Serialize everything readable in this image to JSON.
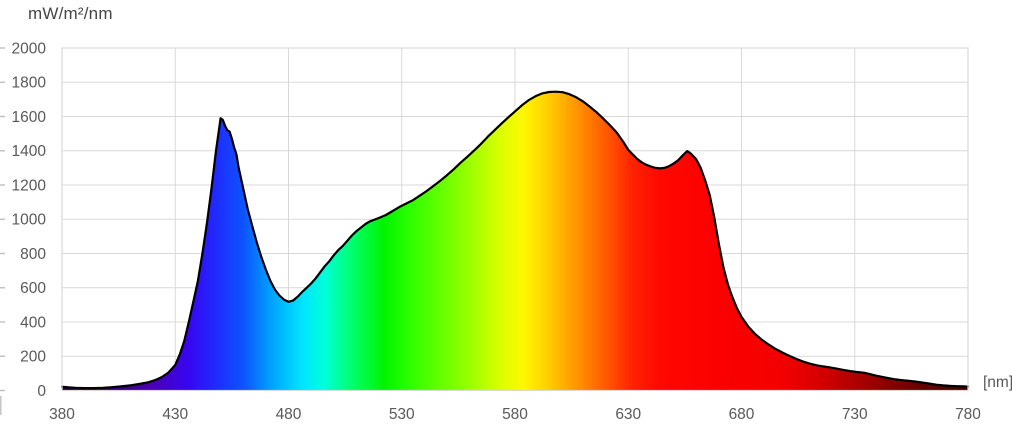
{
  "chart_data": {
    "type": "area",
    "title": "mW/m²/nm",
    "ylabel": "mW/m²/nm",
    "xlabel": "[nm]",
    "xlim": [
      380,
      780
    ],
    "ylim": [
      0,
      2000
    ],
    "x_ticks": [
      380,
      430,
      480,
      530,
      580,
      630,
      680,
      730,
      780
    ],
    "y_ticks": [
      0,
      200,
      400,
      600,
      800,
      1000,
      1200,
      1400,
      1600,
      1800,
      2000
    ],
    "grid": true,
    "grid_color": "#d9d9d9",
    "axis_tick_color": "#bfbfbf",
    "label_color": "#595959",
    "curve_color": "#000000",
    "background_color": "#ffffff",
    "description": "Spectral irradiance of a light source: blue peak ~1590 at 450 nm, valley ~520 at 480 nm, broad maximum ~1745 at 595-600 nm, local dip ~1297 at 644 nm, red peak ~1400 at 656 nm, long dark-red tail to 780 nm",
    "series": [
      {
        "name": "spectral-irradiance",
        "x": [
          380,
          383,
          386,
          390,
          394,
          398,
          402,
          406,
          410,
          414,
          418,
          421,
          424,
          427,
          430,
          432,
          434,
          436,
          438,
          440,
          442,
          444,
          446,
          448,
          450,
          451,
          452,
          453,
          454,
          455,
          456,
          457,
          458,
          460,
          462,
          464,
          466,
          468,
          470,
          472,
          474,
          476,
          478,
          480,
          482,
          484,
          486,
          488,
          490,
          492,
          494,
          496,
          498,
          500,
          502,
          504,
          506,
          508,
          510,
          512,
          514,
          516,
          518,
          520,
          523,
          526,
          529,
          532,
          535,
          538,
          541,
          544,
          547,
          550,
          553,
          556,
          559,
          562,
          565,
          568,
          571,
          574,
          577,
          580,
          583,
          586,
          589,
          592,
          595,
          598,
          601,
          604,
          607,
          610,
          613,
          616,
          619,
          622,
          625,
          628,
          630,
          632,
          634,
          636,
          638,
          640,
          642,
          644,
          646,
          648,
          650,
          652,
          654,
          656,
          657,
          658,
          660,
          662,
          664,
          666,
          668,
          670,
          672,
          674,
          676,
          678,
          680,
          683,
          686,
          689,
          692,
          695,
          698,
          701,
          704,
          707,
          710,
          713,
          716,
          719,
          722,
          725,
          728,
          731,
          734,
          736,
          739,
          742,
          745,
          748,
          751,
          754,
          757,
          760,
          763,
          766,
          769,
          772,
          775,
          778,
          780
        ],
        "y": [
          22,
          18,
          16,
          14,
          14,
          16,
          19,
          24,
          30,
          38,
          48,
          60,
          78,
          105,
          150,
          210,
          290,
          400,
          520,
          640,
          800,
          980,
          1180,
          1400,
          1590,
          1580,
          1545,
          1520,
          1512,
          1470,
          1420,
          1380,
          1300,
          1180,
          1060,
          960,
          865,
          780,
          705,
          640,
          590,
          555,
          530,
          518,
          525,
          548,
          575,
          600,
          625,
          655,
          690,
          725,
          755,
          790,
          820,
          845,
          875,
          905,
          930,
          952,
          972,
          988,
          998,
          1008,
          1025,
          1048,
          1072,
          1092,
          1112,
          1138,
          1165,
          1195,
          1225,
          1258,
          1292,
          1330,
          1365,
          1402,
          1440,
          1482,
          1520,
          1558,
          1595,
          1630,
          1665,
          1695,
          1718,
          1735,
          1743,
          1745,
          1742,
          1730,
          1712,
          1688,
          1658,
          1625,
          1588,
          1548,
          1505,
          1448,
          1405,
          1378,
          1352,
          1332,
          1318,
          1308,
          1300,
          1297,
          1300,
          1310,
          1325,
          1345,
          1372,
          1398,
          1390,
          1378,
          1350,
          1300,
          1225,
          1140,
          1010,
          855,
          720,
          620,
          545,
          480,
          430,
          373,
          330,
          296,
          268,
          243,
          222,
          203,
          185,
          170,
          157,
          148,
          141,
          135,
          128,
          120,
          113,
          108,
          104,
          98,
          88,
          80,
          72,
          65,
          60,
          56,
          52,
          46,
          40,
          34,
          30,
          27,
          25,
          24,
          23
        ]
      }
    ],
    "spectrum_gradient": [
      {
        "pos": 0.0,
        "color": "#20003e"
      },
      {
        "pos": 0.05,
        "color": "#33006b"
      },
      {
        "pos": 0.1,
        "color": "#4a00b8"
      },
      {
        "pos": 0.14,
        "color": "#3706f0"
      },
      {
        "pos": 0.17,
        "color": "#1f2bff"
      },
      {
        "pos": 0.2,
        "color": "#0d53ff"
      },
      {
        "pos": 0.23,
        "color": "#00a0ff"
      },
      {
        "pos": 0.265,
        "color": "#00e4ff"
      },
      {
        "pos": 0.29,
        "color": "#00ffd9"
      },
      {
        "pos": 0.32,
        "color": "#00ff6e"
      },
      {
        "pos": 0.355,
        "color": "#00f400"
      },
      {
        "pos": 0.385,
        "color": "#2fff00"
      },
      {
        "pos": 0.42,
        "color": "#67ff00"
      },
      {
        "pos": 0.455,
        "color": "#a4ff00"
      },
      {
        "pos": 0.485,
        "color": "#dcff00"
      },
      {
        "pos": 0.51,
        "color": "#fff700"
      },
      {
        "pos": 0.54,
        "color": "#ffc800"
      },
      {
        "pos": 0.57,
        "color": "#ff9100"
      },
      {
        "pos": 0.6,
        "color": "#ff5a00"
      },
      {
        "pos": 0.63,
        "color": "#ff2200"
      },
      {
        "pos": 0.66,
        "color": "#ff0800"
      },
      {
        "pos": 0.72,
        "color": "#fb0000"
      },
      {
        "pos": 0.79,
        "color": "#f40000"
      },
      {
        "pos": 0.83,
        "color": "#dc0000"
      },
      {
        "pos": 0.87,
        "color": "#b40000"
      },
      {
        "pos": 0.91,
        "color": "#8c0000"
      },
      {
        "pos": 0.95,
        "color": "#660000"
      },
      {
        "pos": 1.0,
        "color": "#470000"
      }
    ]
  }
}
